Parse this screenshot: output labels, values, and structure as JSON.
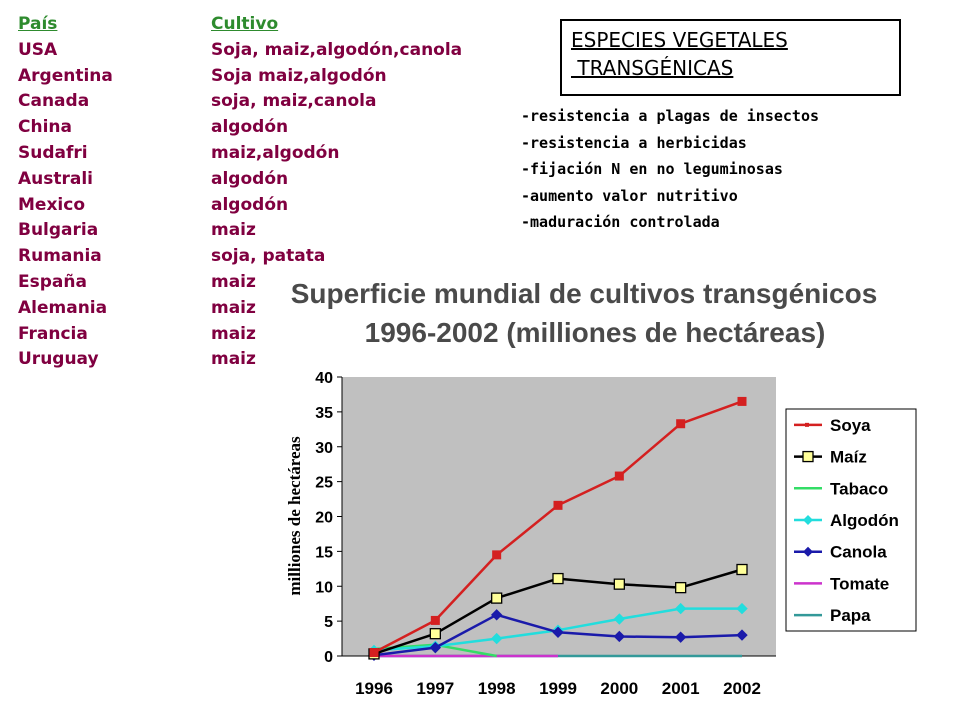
{
  "crops_table": {
    "header": {
      "country": "País",
      "crop": "Cultivo"
    },
    "rows": [
      {
        "country": "USA",
        "crop": "Soja, maiz,algodón,canola"
      },
      {
        "country": "Argentina",
        "crop": "Soja maiz,algodón"
      },
      {
        "country": "Canada",
        "crop": "soja, maiz,canola"
      },
      {
        "country": "China",
        "crop": "algodón"
      },
      {
        "country": "Sudafri",
        "crop": "maiz,algodón"
      },
      {
        "country": "Australi",
        "crop": "algodón"
      },
      {
        "country": "Mexico",
        "crop": "algodón"
      },
      {
        "country": "Bulgaria",
        "crop": "maiz"
      },
      {
        "country": "Rumania",
        "crop": "soja, patata"
      },
      {
        "country": "España",
        "crop": "maiz"
      },
      {
        "country": "Alemania",
        "crop": "maiz"
      },
      {
        "country": "Francia",
        "crop": "maiz"
      },
      {
        "country": "Uruguay",
        "crop": "maiz"
      }
    ]
  },
  "title_box": {
    "line1": "ESPECIES VEGETALES",
    "line2": " TRANSGÉNICAS"
  },
  "traits": [
    "-resistencia a plagas de insectos",
    "-resistencia a herbicidas",
    "-fijación N en no leguminosas",
    "-aumento valor nutritivo",
    "-maduración controlada"
  ],
  "colors": {
    "table_text": "#800040",
    "table_header": "#2e8b2e",
    "plot_background": "#c0c0c0"
  },
  "chart_data": {
    "type": "line",
    "title": "Superficie mundial de cultivos transgénicos",
    "subtitle": "1996-2002 (milliones de hectáreas)",
    "xlabel": "",
    "ylabel": "milliones de hectáreas",
    "x": [
      "1996",
      "1997",
      "1998",
      "1999",
      "2000",
      "2001",
      "2002"
    ],
    "ylim": [
      0,
      40
    ],
    "yticks": [
      0,
      5,
      10,
      15,
      20,
      25,
      30,
      35,
      40
    ],
    "grid": false,
    "legend": "right",
    "series": [
      {
        "name": "Soya",
        "color": "#d42020",
        "marker": "square-small",
        "values": [
          0.5,
          5.1,
          14.5,
          21.6,
          25.8,
          33.3,
          36.5
        ]
      },
      {
        "name": "Maíz",
        "color": "#000000",
        "marker": "square-yellow",
        "values": [
          0.3,
          3.2,
          8.3,
          11.1,
          10.3,
          9.8,
          12.4
        ]
      },
      {
        "name": "Tabaco",
        "color": "#33dd66",
        "marker": "none",
        "values": [
          1.0,
          1.6,
          0,
          null,
          null,
          null,
          null
        ]
      },
      {
        "name": "Algodón",
        "color": "#22dddd",
        "marker": "diamond",
        "values": [
          0.8,
          1.4,
          2.5,
          3.7,
          5.3,
          6.8,
          6.8
        ]
      },
      {
        "name": "Canola",
        "color": "#1a1aaa",
        "marker": "diamond",
        "values": [
          0.1,
          1.2,
          5.9,
          3.4,
          2.8,
          2.7,
          3.0
        ]
      },
      {
        "name": "Tomate",
        "color": "#cc33cc",
        "marker": "none",
        "values": [
          0,
          0,
          0,
          0,
          null,
          null,
          null
        ]
      },
      {
        "name": "Papa",
        "color": "#339999",
        "marker": "none",
        "values": [
          0,
          0,
          0,
          0,
          0,
          0,
          0
        ]
      }
    ]
  }
}
